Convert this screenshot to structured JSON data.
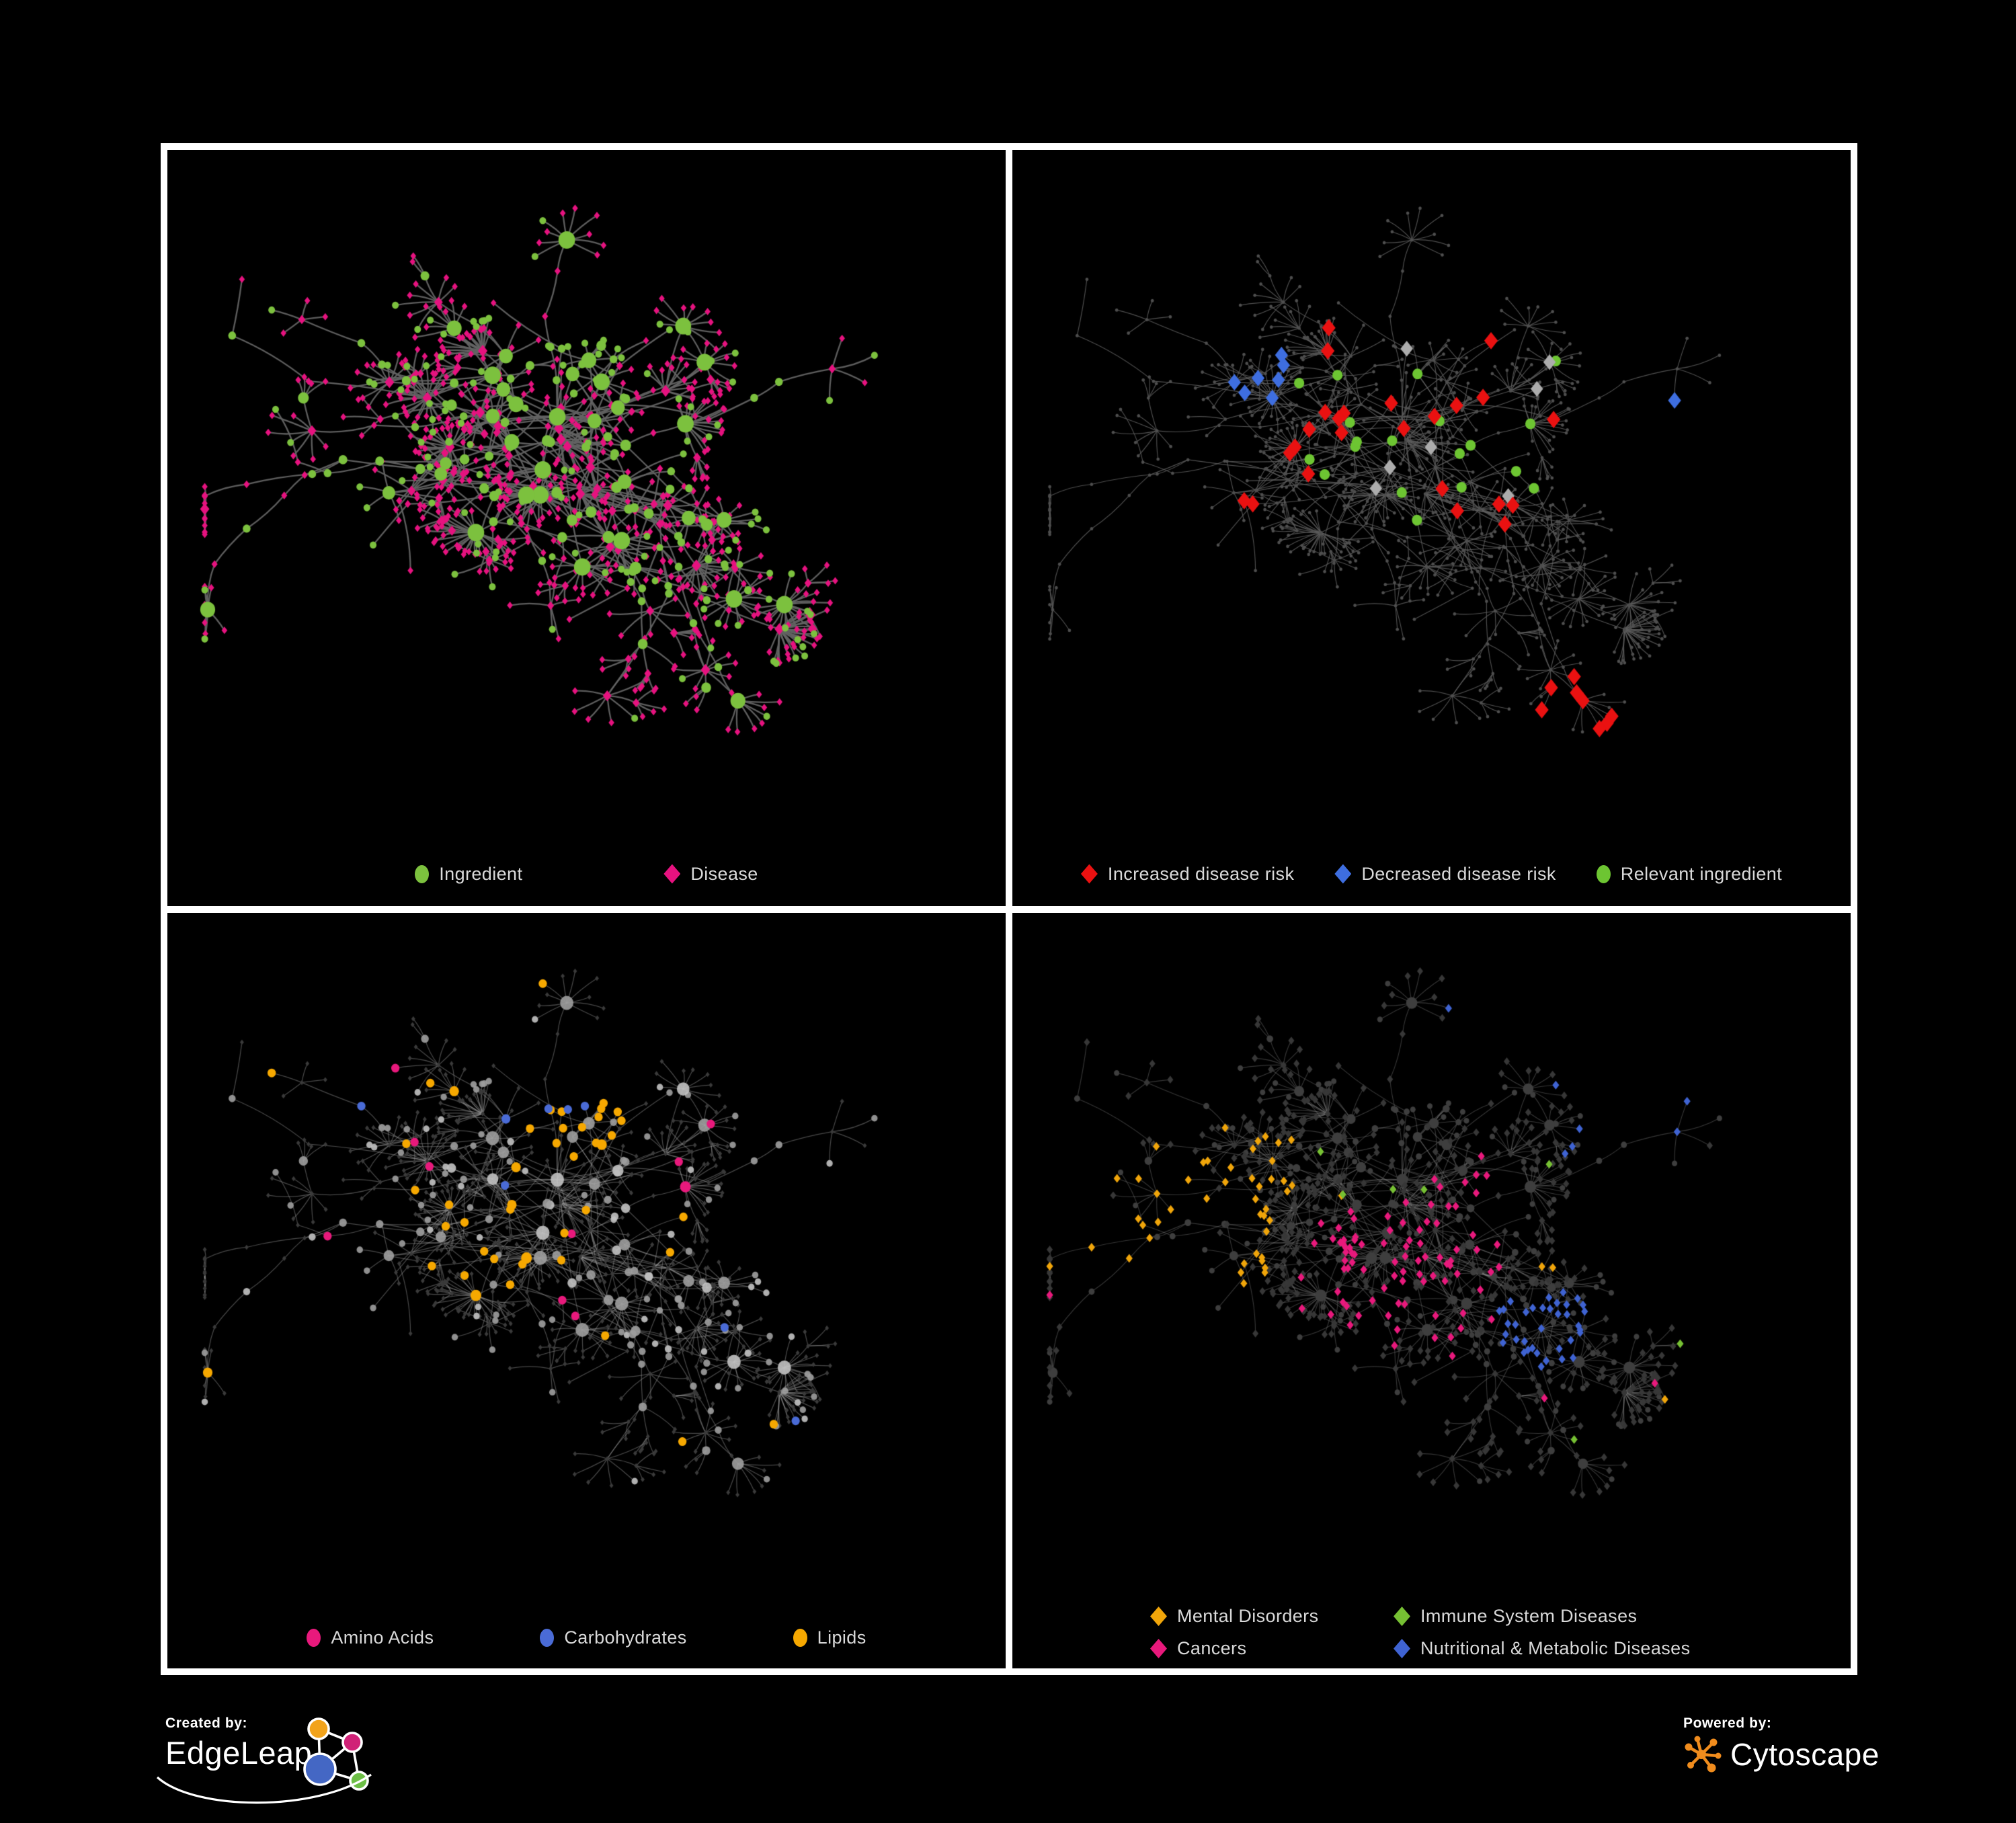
{
  "page": {
    "background": "#000000",
    "frame_border": "#FFFFFF"
  },
  "panels": [
    {
      "name": "ingredient-disease-network",
      "legend": {
        "items": [
          {
            "label": "Ingredient",
            "color": "#7CC13E",
            "shape": "ellipse"
          },
          {
            "label": "Disease",
            "color": "#E6127F",
            "shape": "diamond"
          }
        ]
      }
    },
    {
      "name": "disease-risk-network",
      "legend": {
        "items": [
          {
            "label": "Increased disease risk",
            "color": "#EA1111",
            "shape": "diamond"
          },
          {
            "label": "Decreased disease risk",
            "color": "#3E6EE0",
            "shape": "diamond"
          },
          {
            "label": "Relevant ingredient",
            "color": "#6DC532",
            "shape": "ellipse"
          }
        ]
      }
    },
    {
      "name": "nutrient-class-network",
      "legend": {
        "items": [
          {
            "label": "Amino Acids",
            "color": "#E8197C",
            "shape": "ellipse"
          },
          {
            "label": "Carbohydrates",
            "color": "#4A6BD6",
            "shape": "ellipse"
          },
          {
            "label": "Lipids",
            "color": "#F6A800",
            "shape": "ellipse"
          }
        ]
      }
    },
    {
      "name": "disease-category-network",
      "legend": {
        "items": [
          {
            "label": "Mental Disorders",
            "color": "#F0A50A",
            "shape": "diamond"
          },
          {
            "label": "Immune System Diseases",
            "color": "#76C033",
            "shape": "diamond"
          },
          {
            "label": "Cancers",
            "color": "#E8197C",
            "shape": "diamond"
          },
          {
            "label": "Nutritional & Metabolic Diseases",
            "color": "#3F63D2",
            "shape": "diamond"
          }
        ]
      }
    }
  ],
  "footer": {
    "created_by_label": "Created by:",
    "created_by_brand": "EdgeLeap",
    "powered_by_label": "Powered by:",
    "powered_by_brand": "Cytoscape",
    "edgeleap_colors": {
      "orange": "#F2A31B",
      "pink": "#D02277",
      "blue": "#4467C4",
      "green": "#6CBE45",
      "line": "#FFFFFF"
    },
    "cytoscape_color": "#F08C1D"
  },
  "network": {
    "seed": 20240613,
    "styles": [
      {
        "edge": {
          "color": "#636363",
          "alpha": 0.95,
          "width": 2.3
        },
        "ing": {
          "color": "#7CC13E",
          "rBase": 4.5,
          "rDeg": 0.8,
          "rMax": 13
        },
        "dis": {
          "color": "#E6127F",
          "rBase": 4.6,
          "rDeg": 0.3,
          "rMax": 8
        }
      },
      {
        "edge": {
          "color": "#5E5E5E",
          "alpha": 0.85,
          "width": 1.15
        },
        "base": {
          "color": "#4E4E4E",
          "r": 2.5
        },
        "red": {
          "color": "#EA1111",
          "r": 11.5
        },
        "blue": {
          "color": "#3E6EE0",
          "r": 11
        },
        "silver": {
          "color": "#ACACAC",
          "r": 10.5
        },
        "green": {
          "color": "#6DC532",
          "r": 8
        }
      },
      {
        "edge": {
          "color": "#A0A0A0",
          "alpha": 0.45,
          "width": 1.25
        },
        "grayA": "#9E9E9E",
        "grayB": "#C2C2C2",
        "dark": "#3A3A3A",
        "amino": "#E8197C",
        "carb": "#4A6BD6",
        "lipid": "#F6A800"
      },
      {
        "edge": {
          "color": "#8F8F8F",
          "alpha": 0.38,
          "width": 1.15
        },
        "hub": "#3E3E3E",
        "dark": "#373737",
        "mental": "#F0A50A",
        "immune": "#76C033",
        "cancer": "#E8197C",
        "nutri": "#3F63D2"
      }
    ]
  }
}
